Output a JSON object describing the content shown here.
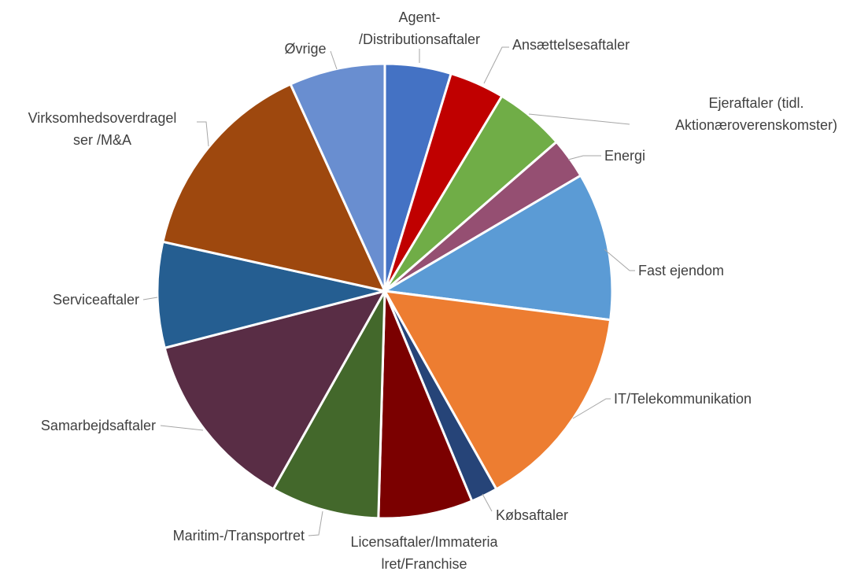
{
  "chart_data": {
    "type": "pie",
    "categories": [
      "Agent-\n/Distributionsaftaler",
      "Ansættelsesaftaler",
      "Ejeraftaler (tidl.\nAktionæroverenskomster)",
      "Energi",
      "Fast ejendom",
      "IT/Telekommunikation",
      "Købsaftaler",
      "Licensaftaler/Immateria\nlret/Franchise",
      "Maritim-/Transportret",
      "Samarbejdsaftaler",
      "Serviceaftaler",
      "Virksomhedsoverdragel\nser /M&A",
      "Øvrige"
    ],
    "values": [
      4.7,
      3.9,
      5.0,
      2.9,
      10.5,
      14.8,
      1.9,
      6.7,
      7.7,
      12.8,
      7.5,
      14.7,
      6.8
    ],
    "colors": [
      "#4472c4",
      "#c00000",
      "#70ad47",
      "#954f72",
      "#5b9bd5",
      "#ed7d31",
      "#264478",
      "#7b0000",
      "#43682b",
      "#592d45",
      "#255e91",
      "#9e480e",
      "#698ed0"
    ]
  }
}
